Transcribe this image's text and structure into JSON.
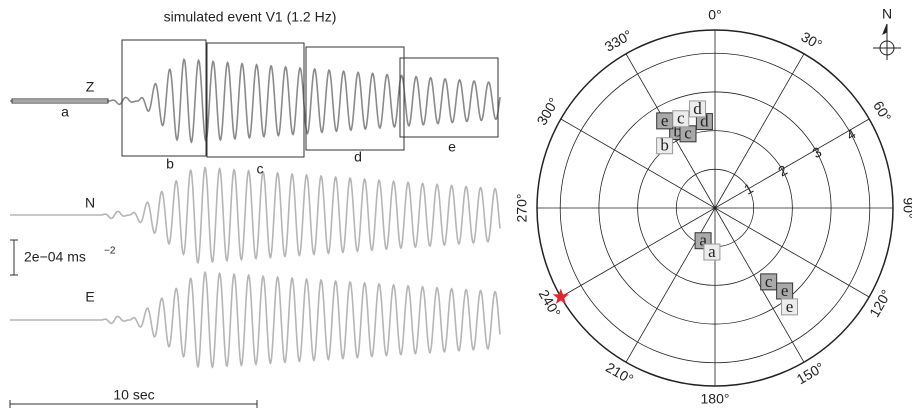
{
  "chart_data": [
    {
      "type": "waveform",
      "title": "simulated event V1 (1.2 Hz)",
      "traces": [
        "Z",
        "N",
        "E"
      ],
      "windows": [
        "a",
        "b",
        "c",
        "d",
        "e"
      ],
      "amplitude_scale": {
        "label": "2e−04 ms",
        "exponent": "−2"
      },
      "time_scale": {
        "label": "10 sec"
      }
    },
    {
      "type": "polar",
      "theta_ticks": [
        {
          "value": 0,
          "label": "0°"
        },
        {
          "value": 30,
          "label": "30°"
        },
        {
          "value": 60,
          "label": "60°"
        },
        {
          "value": 90,
          "label": "90°"
        },
        {
          "value": 120,
          "label": "120°"
        },
        {
          "value": 150,
          "label": "150°"
        },
        {
          "value": 180,
          "label": "180°"
        },
        {
          "value": 210,
          "label": "210°"
        },
        {
          "value": 240,
          "label": "240°"
        },
        {
          "value": 270,
          "label": "270°"
        },
        {
          "value": 300,
          "label": "300°"
        },
        {
          "value": 330,
          "label": "330°"
        }
      ],
      "rlim": [
        0,
        4.6
      ],
      "rticks": [
        1,
        2,
        3,
        4
      ],
      "series": [
        {
          "color": "#a9a9a9",
          "labels": [
            "a",
            "b",
            "c",
            "c",
            "d",
            "e",
            "e"
          ],
          "theta": [
            200,
            334,
            340,
            144,
            353,
            330,
            140
          ],
          "r": [
            0.9,
            2.2,
            2.04,
            2.36,
            2.25,
            2.6,
            2.8
          ]
        },
        {
          "color": "#6a8fc8",
          "labels": [
            "a",
            "b",
            "c",
            "d",
            "e"
          ],
          "theta": [
            184,
            321,
            339,
            350,
            143
          ],
          "r": [
            1.14,
            2.07,
            2.47,
            2.6,
            3.2
          ]
        }
      ],
      "marker": {
        "theta": 240,
        "r": 4.6,
        "color": "#e8232a"
      },
      "north": "N"
    }
  ]
}
